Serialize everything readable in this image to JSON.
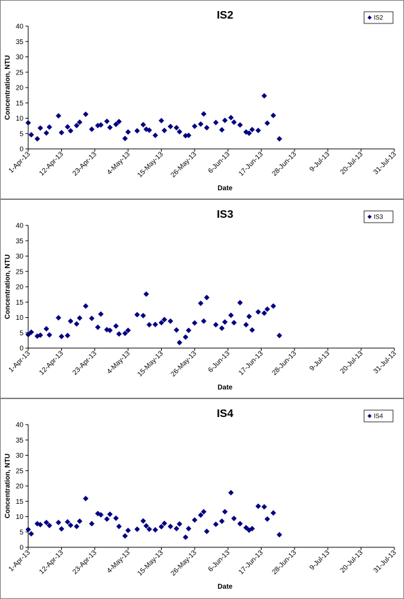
{
  "colors": {
    "marker": "#000080",
    "axis": "#000000",
    "frame": "#808080"
  },
  "chart_data": [
    {
      "type": "scatter",
      "title": "IS2",
      "xlabel": "Date",
      "ylabel": "Concentration, NTU",
      "ylim": [
        0,
        40
      ],
      "yticks": [
        "0",
        "5",
        "10",
        "15",
        "20",
        "25",
        "30",
        "35",
        "40"
      ],
      "xlim": [
        "2013-04-01",
        "2013-07-31"
      ],
      "xticks": [
        "1-Apr-13",
        "12-Apr-13",
        "23-Apr-13",
        "4-May-13",
        "15-May-13",
        "26-May-13",
        "6-Jun-13",
        "17-Jun-13",
        "28-Jun-13",
        "9-Jul-13",
        "20-Jul-13",
        "31-Jul-13"
      ],
      "legend": "top-right",
      "series": [
        {
          "name": "IS2",
          "marker": "diamond",
          "points": [
            [
              "2013-04-01",
              8.5
            ],
            [
              "2013-04-02",
              4.6
            ],
            [
              "2013-04-04",
              3.3
            ],
            [
              "2013-04-05",
              6.8
            ],
            [
              "2013-04-07",
              5.2
            ],
            [
              "2013-04-08",
              7.1
            ],
            [
              "2013-04-11",
              10.8
            ],
            [
              "2013-04-12",
              5.3
            ],
            [
              "2013-04-14",
              7.2
            ],
            [
              "2013-04-15",
              5.9
            ],
            [
              "2013-04-17",
              7.6
            ],
            [
              "2013-04-18",
              8.7
            ],
            [
              "2013-04-20",
              11.3
            ],
            [
              "2013-04-22",
              6.4
            ],
            [
              "2013-04-24",
              7.6
            ],
            [
              "2013-04-25",
              7.8
            ],
            [
              "2013-04-27",
              9.0
            ],
            [
              "2013-04-28",
              7.0
            ],
            [
              "2013-04-30",
              8.0
            ],
            [
              "2013-05-01",
              8.9
            ],
            [
              "2013-05-03",
              3.4
            ],
            [
              "2013-05-04",
              5.5
            ],
            [
              "2013-05-07",
              5.9
            ],
            [
              "2013-05-09",
              7.9
            ],
            [
              "2013-05-10",
              6.4
            ],
            [
              "2013-05-11",
              6.1
            ],
            [
              "2013-05-13",
              4.4
            ],
            [
              "2013-05-15",
              9.2
            ],
            [
              "2013-05-16",
              6.0
            ],
            [
              "2013-05-18",
              7.3
            ],
            [
              "2013-05-20",
              6.9
            ],
            [
              "2013-05-21",
              5.6
            ],
            [
              "2013-05-23",
              4.3
            ],
            [
              "2013-05-24",
              4.4
            ],
            [
              "2013-05-26",
              7.4
            ],
            [
              "2013-05-28",
              8.1
            ],
            [
              "2013-05-29",
              11.4
            ],
            [
              "2013-05-30",
              6.9
            ],
            [
              "2013-06-02",
              8.6
            ],
            [
              "2013-06-04",
              6.2
            ],
            [
              "2013-06-05",
              9.3
            ],
            [
              "2013-06-07",
              10.2
            ],
            [
              "2013-06-08",
              8.7
            ],
            [
              "2013-06-10",
              7.8
            ],
            [
              "2013-06-12",
              5.5
            ],
            [
              "2013-06-13",
              5.1
            ],
            [
              "2013-06-14",
              6.3
            ],
            [
              "2013-06-16",
              6.0
            ],
            [
              "2013-06-18",
              17.3
            ],
            [
              "2013-06-19",
              8.4
            ],
            [
              "2013-06-21",
              10.9
            ],
            [
              "2013-06-23",
              3.3
            ]
          ]
        }
      ]
    },
    {
      "type": "scatter",
      "title": "IS3",
      "xlabel": "Date",
      "ylabel": "Concentration, NTU",
      "ylim": [
        0,
        40
      ],
      "yticks": [
        "0",
        "5",
        "10",
        "15",
        "20",
        "25",
        "30",
        "35",
        "40"
      ],
      "xlim": [
        "2013-04-01",
        "2013-07-31"
      ],
      "xticks": [
        "1-Apr-13",
        "12-Apr-13",
        "23-Apr-13",
        "4-May-13",
        "15-May-13",
        "26-May-13",
        "6-Jun-13",
        "17-Jun-13",
        "28-Jun-13",
        "9-Jul-13",
        "20-Jul-13",
        "31-Jul-13"
      ],
      "legend": "top-right",
      "series": [
        {
          "name": "IS3",
          "marker": "diamond",
          "points": [
            [
              "2013-04-01",
              4.4
            ],
            [
              "2013-04-02",
              5.2
            ],
            [
              "2013-04-04",
              3.9
            ],
            [
              "2013-04-05",
              4.2
            ],
            [
              "2013-04-07",
              6.3
            ],
            [
              "2013-04-08",
              4.3
            ],
            [
              "2013-04-11",
              9.9
            ],
            [
              "2013-04-12",
              3.8
            ],
            [
              "2013-04-14",
              4.1
            ],
            [
              "2013-04-15",
              8.8
            ],
            [
              "2013-04-17",
              7.9
            ],
            [
              "2013-04-18",
              9.8
            ],
            [
              "2013-04-20",
              13.7
            ],
            [
              "2013-04-22",
              9.7
            ],
            [
              "2013-04-24",
              6.8
            ],
            [
              "2013-04-25",
              11.1
            ],
            [
              "2013-04-27",
              6.0
            ],
            [
              "2013-04-28",
              5.8
            ],
            [
              "2013-04-30",
              7.2
            ],
            [
              "2013-05-01",
              4.6
            ],
            [
              "2013-05-03",
              4.8
            ],
            [
              "2013-05-04",
              5.8
            ],
            [
              "2013-05-07",
              10.9
            ],
            [
              "2013-05-09",
              10.6
            ],
            [
              "2013-05-10",
              17.6
            ],
            [
              "2013-05-11",
              7.6
            ],
            [
              "2013-05-13",
              7.7
            ],
            [
              "2013-05-15",
              8.3
            ],
            [
              "2013-05-16",
              9.3
            ],
            [
              "2013-05-18",
              8.8
            ],
            [
              "2013-05-20",
              5.9
            ],
            [
              "2013-05-21",
              1.8
            ],
            [
              "2013-05-23",
              3.6
            ],
            [
              "2013-05-24",
              5.8
            ],
            [
              "2013-05-26",
              8.2
            ],
            [
              "2013-05-28",
              14.6
            ],
            [
              "2013-05-29",
              8.8
            ],
            [
              "2013-05-30",
              16.5
            ],
            [
              "2013-06-02",
              7.6
            ],
            [
              "2013-06-04",
              6.5
            ],
            [
              "2013-06-05",
              8.5
            ],
            [
              "2013-06-07",
              10.7
            ],
            [
              "2013-06-08",
              8.3
            ],
            [
              "2013-06-10",
              14.8
            ],
            [
              "2013-06-12",
              7.6
            ],
            [
              "2013-06-13",
              10.3
            ],
            [
              "2013-06-14",
              5.9
            ],
            [
              "2013-06-16",
              11.8
            ],
            [
              "2013-06-18",
              11.4
            ],
            [
              "2013-06-19",
              12.7
            ],
            [
              "2013-06-21",
              13.7
            ],
            [
              "2013-06-23",
              4.1
            ]
          ]
        }
      ]
    },
    {
      "type": "scatter",
      "title": "IS4",
      "xlabel": "Date",
      "ylabel": "Concentration, NTU",
      "ylim": [
        0,
        40
      ],
      "yticks": [
        "0",
        "5",
        "10",
        "15",
        "20",
        "25",
        "30",
        "35",
        "40"
      ],
      "xlim": [
        "2013-04-01",
        "2013-07-31"
      ],
      "xticks": [
        "1-Apr-13",
        "12-Apr-13",
        "23-Apr-13",
        "4-May-13",
        "15-May-13",
        "26-May-13",
        "6-Jun-13",
        "17-Jun-13",
        "28-Jun-13",
        "9-Jul-13",
        "20-Jul-13",
        "31-Jul-13"
      ],
      "legend": "top-right",
      "series": [
        {
          "name": "IS4",
          "marker": "diamond",
          "points": [
            [
              "2013-04-01",
              5.8
            ],
            [
              "2013-04-02",
              4.4
            ],
            [
              "2013-04-04",
              7.7
            ],
            [
              "2013-04-05",
              7.4
            ],
            [
              "2013-04-07",
              8.1
            ],
            [
              "2013-04-08",
              7.1
            ],
            [
              "2013-04-11",
              8.1
            ],
            [
              "2013-04-12",
              6.0
            ],
            [
              "2013-04-14",
              8.3
            ],
            [
              "2013-04-15",
              7.2
            ],
            [
              "2013-04-17",
              6.8
            ],
            [
              "2013-04-18",
              8.5
            ],
            [
              "2013-04-20",
              15.9
            ],
            [
              "2013-04-22",
              7.7
            ],
            [
              "2013-04-24",
              11.0
            ],
            [
              "2013-04-25",
              10.6
            ],
            [
              "2013-04-27",
              9.2
            ],
            [
              "2013-04-28",
              10.8
            ],
            [
              "2013-04-30",
              9.5
            ],
            [
              "2013-05-01",
              6.8
            ],
            [
              "2013-05-03",
              3.7
            ],
            [
              "2013-05-04",
              5.5
            ],
            [
              "2013-05-07",
              5.9
            ],
            [
              "2013-05-09",
              8.6
            ],
            [
              "2013-05-10",
              7.0
            ],
            [
              "2013-05-11",
              5.9
            ],
            [
              "2013-05-13",
              5.7
            ],
            [
              "2013-05-15",
              6.7
            ],
            [
              "2013-05-16",
              7.8
            ],
            [
              "2013-05-18",
              6.8
            ],
            [
              "2013-05-20",
              6.1
            ],
            [
              "2013-05-21",
              7.6
            ],
            [
              "2013-05-23",
              3.3
            ],
            [
              "2013-05-24",
              6.1
            ],
            [
              "2013-05-26",
              8.9
            ],
            [
              "2013-05-28",
              10.5
            ],
            [
              "2013-05-29",
              11.6
            ],
            [
              "2013-05-30",
              5.2
            ],
            [
              "2013-06-02",
              7.5
            ],
            [
              "2013-06-04",
              8.5
            ],
            [
              "2013-06-05",
              11.6
            ],
            [
              "2013-06-07",
              17.8
            ],
            [
              "2013-06-08",
              9.4
            ],
            [
              "2013-06-10",
              7.7
            ],
            [
              "2013-06-12",
              6.4
            ],
            [
              "2013-06-13",
              5.6
            ],
            [
              "2013-06-14",
              6.1
            ],
            [
              "2013-06-16",
              13.4
            ],
            [
              "2013-06-18",
              13.2
            ],
            [
              "2013-06-19",
              9.2
            ],
            [
              "2013-06-21",
              11.2
            ],
            [
              "2013-06-23",
              4.1
            ]
          ]
        }
      ]
    }
  ]
}
